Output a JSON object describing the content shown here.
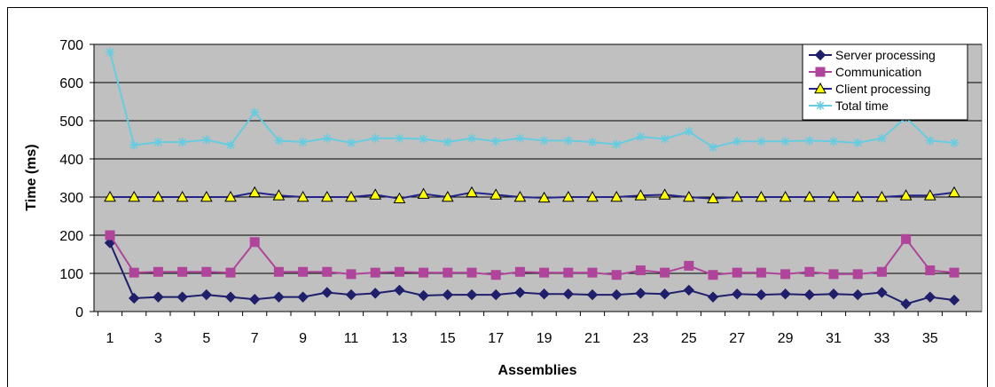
{
  "chart_data": {
    "type": "line",
    "xlabel": "Assemblies",
    "ylabel": "Time (ms)",
    "x": [
      1,
      2,
      3,
      4,
      5,
      6,
      7,
      8,
      9,
      10,
      11,
      12,
      13,
      14,
      15,
      16,
      17,
      18,
      19,
      20,
      21,
      22,
      23,
      24,
      25,
      26,
      27,
      28,
      29,
      30,
      31,
      32,
      33,
      34,
      35,
      36
    ],
    "x_tick_labels": [
      "1",
      "3",
      "5",
      "7",
      "9",
      "11",
      "13",
      "15",
      "17",
      "19",
      "21",
      "23",
      "25",
      "27",
      "29",
      "31",
      "33",
      "35"
    ],
    "y_tick_labels": [
      "0",
      "100",
      "200",
      "300",
      "400",
      "500",
      "600",
      "700"
    ],
    "ylim": [
      0,
      700
    ],
    "grid": true,
    "legend_position": "top-right",
    "series": [
      {
        "name": "Server processing",
        "color": "#1f1f6b",
        "marker": "diamond",
        "values": [
          180,
          35,
          38,
          38,
          44,
          38,
          32,
          38,
          38,
          50,
          44,
          48,
          56,
          42,
          44,
          44,
          44,
          50,
          46,
          46,
          44,
          44,
          48,
          46,
          56,
          38,
          46,
          44,
          46,
          44,
          46,
          44,
          50,
          20,
          38,
          30
        ]
      },
      {
        "name": "Communication",
        "color": "#b0449a",
        "marker": "square",
        "values": [
          200,
          102,
          104,
          104,
          104,
          102,
          182,
          104,
          104,
          104,
          98,
          102,
          104,
          102,
          102,
          102,
          96,
          104,
          102,
          102,
          102,
          96,
          108,
          102,
          120,
          96,
          102,
          102,
          98,
          104,
          98,
          98,
          104,
          190,
          108,
          102
        ]
      },
      {
        "name": "Client processing",
        "color": "#24248a",
        "marker": "triangle",
        "values": [
          300,
          300,
          300,
          300,
          300,
          300,
          312,
          304,
          300,
          300,
          300,
          306,
          296,
          308,
          300,
          312,
          306,
          300,
          298,
          300,
          300,
          300,
          304,
          306,
          300,
          296,
          300,
          300,
          300,
          300,
          300,
          300,
          300,
          304,
          304,
          312
        ]
      },
      {
        "name": "Total time",
        "color": "#66cce0",
        "marker": "star",
        "values": [
          680,
          436,
          444,
          444,
          450,
          436,
          522,
          448,
          444,
          454,
          442,
          454,
          454,
          452,
          444,
          454,
          446,
          454,
          448,
          448,
          444,
          438,
          458,
          452,
          472,
          430,
          446,
          446,
          446,
          448,
          446,
          442,
          454,
          508,
          448,
          442
        ]
      }
    ]
  }
}
